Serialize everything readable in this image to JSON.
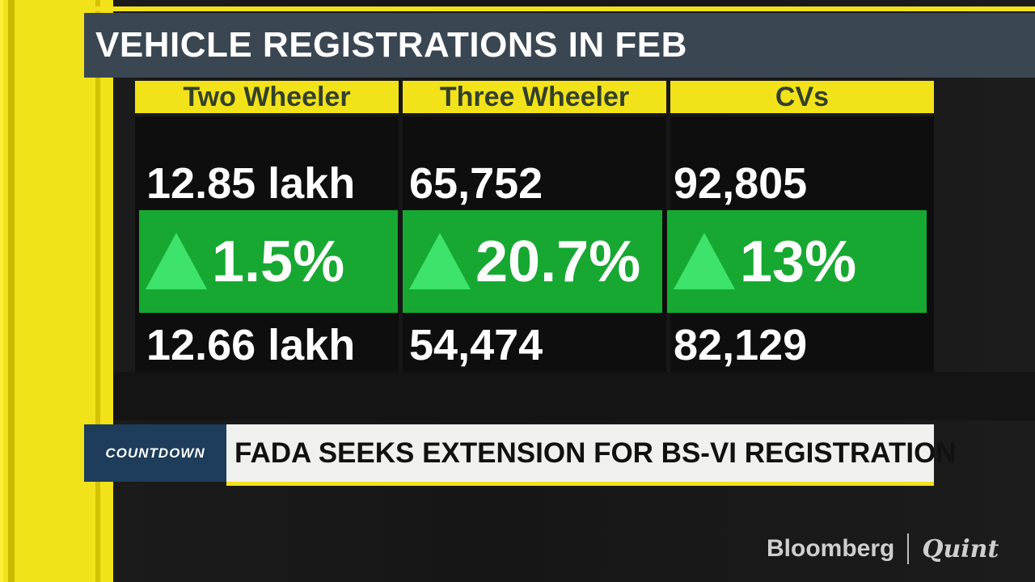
{
  "headline": "VEHICLE REGISTRATIONS IN FEB",
  "categories": [
    {
      "label": "Two Wheeler",
      "current": "12.85 lakh",
      "change": "1.5%",
      "previous": "12.66 lakh",
      "direction": "up-arrow-icon"
    },
    {
      "label": "Three Wheeler",
      "current": "65,752",
      "change": "20.7%",
      "previous": "54,474",
      "direction": "up-arrow-icon"
    },
    {
      "label": "CVs",
      "current": "92,805",
      "change": "13%",
      "previous": "82,129",
      "direction": "up-arrow-icon"
    }
  ],
  "ticker": {
    "badge": "COUNTDOWN",
    "text": "FADA SEEKS EXTENSION FOR BS-VI REGISTRATION"
  },
  "logo": {
    "left": "Bloomberg",
    "right": "Quint"
  },
  "colors": {
    "accent_yellow": "#f2e21a",
    "up_green": "#17a832",
    "arrow_green": "#3de36a",
    "header_slate": "#3a4652",
    "badge_blue": "#1d3d5a"
  }
}
